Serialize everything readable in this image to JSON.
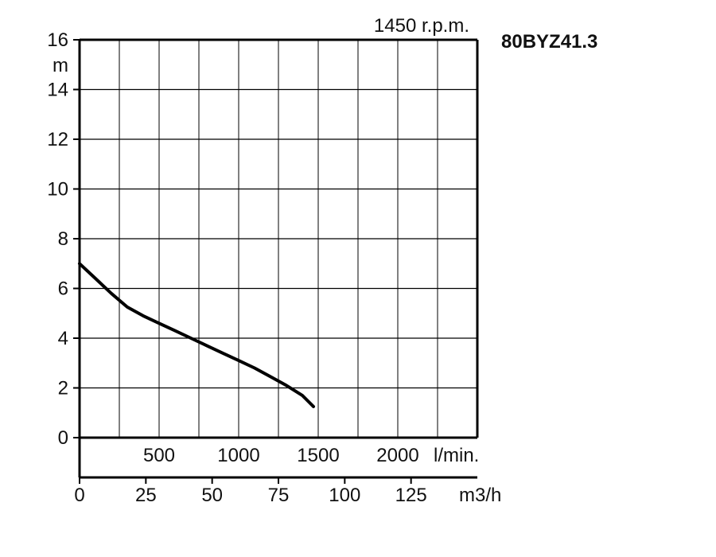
{
  "chart_data": {
    "type": "line",
    "model": "80BYZ41.3",
    "speed_label": "1450 r.p.m.",
    "y_axis": {
      "unit": "m",
      "ylim": [
        0,
        16
      ],
      "ticks": [
        "0",
        "2",
        "4",
        "6",
        "8",
        "10",
        "12",
        "14",
        "16"
      ],
      "grid": true
    },
    "x_axis_lpm": {
      "unit": "l/min.",
      "xlim": [
        0,
        2500
      ],
      "ticks": [
        {
          "value": 500,
          "label": "500"
        },
        {
          "value": 1000,
          "label": "1000"
        },
        {
          "value": 1500,
          "label": "1500"
        },
        {
          "value": 2000,
          "label": "2000"
        }
      ],
      "grid": true
    },
    "x_axis_m3h": {
      "unit": "m3/h",
      "xlim": [
        0,
        150
      ],
      "ticks": [
        {
          "value": 0,
          "label": "0"
        },
        {
          "value": 25,
          "label": "25"
        },
        {
          "value": 50,
          "label": "50"
        },
        {
          "value": 75,
          "label": "75"
        },
        {
          "value": 100,
          "label": "100"
        },
        {
          "value": 125,
          "label": "125"
        }
      ]
    },
    "series": [
      {
        "x_lpm": [
          0,
          100,
          200,
          300,
          400,
          500,
          600,
          700,
          800,
          900,
          1000,
          1100,
          1200,
          1300,
          1400,
          1470
        ],
        "y_m": [
          7.0,
          6.4,
          5.8,
          5.25,
          4.9,
          4.6,
          4.3,
          4.0,
          3.7,
          3.4,
          3.1,
          2.8,
          2.45,
          2.1,
          1.7,
          1.25
        ]
      }
    ],
    "colors": {
      "line": "#000000",
      "grid": "#000000",
      "text": "#111111"
    }
  }
}
